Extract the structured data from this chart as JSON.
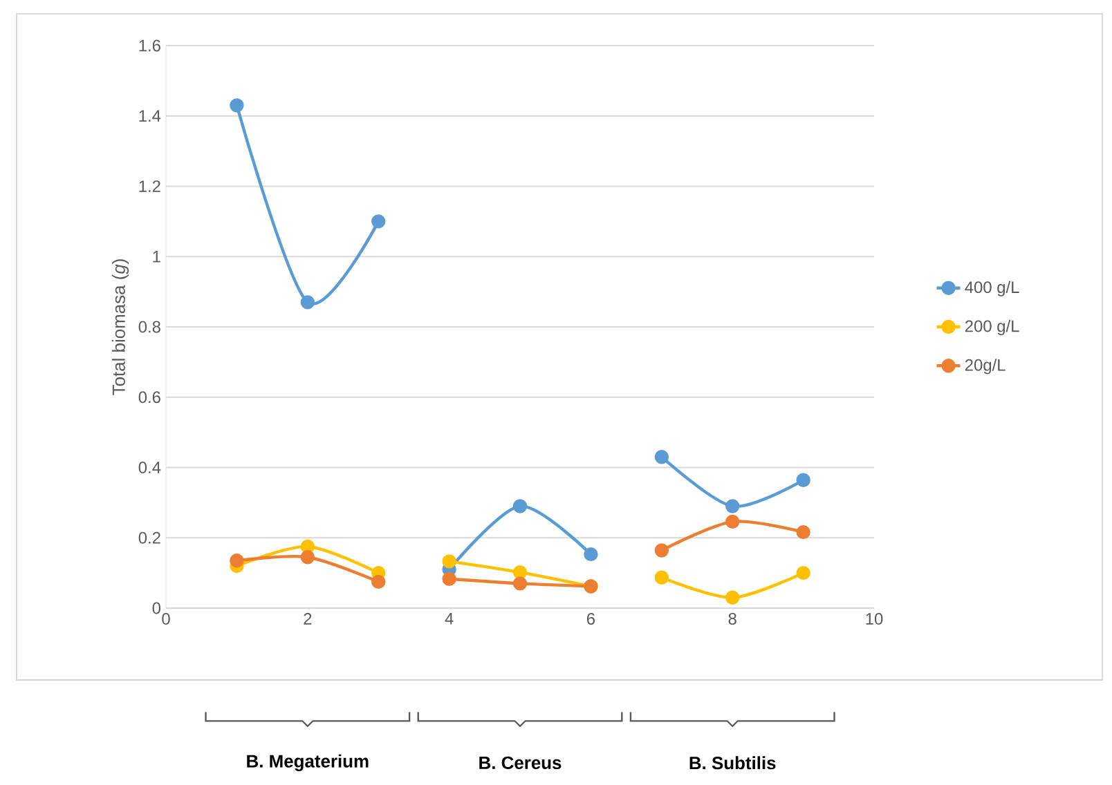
{
  "chart_data": {
    "type": "line",
    "ylabel": "Total biomasa (*g*)",
    "x": [
      1,
      2,
      3,
      null,
      4,
      5,
      6,
      null,
      7,
      8,
      9
    ],
    "series": [
      {
        "name": "400 g/L",
        "color": "#5b9bd5",
        "values": [
          1.43,
          0.87,
          1.1,
          null,
          0.11,
          0.29,
          0.153,
          null,
          0.43,
          0.29,
          0.364
        ]
      },
      {
        "name": "200 g/L",
        "color": "#ffc000",
        "values": [
          0.12,
          0.175,
          0.1,
          null,
          0.133,
          0.102,
          0.062,
          null,
          0.087,
          0.03,
          0.1
        ]
      },
      {
        "name": "20g/L",
        "color": "#ed7d31",
        "values": [
          0.135,
          0.145,
          0.075,
          null,
          0.083,
          0.07,
          0.062,
          null,
          0.164,
          0.246,
          0.216
        ]
      }
    ],
    "xlim": [
      0,
      10
    ],
    "xticks": [
      0,
      2,
      4,
      6,
      8,
      10
    ],
    "ylim": [
      0,
      1.6
    ],
    "yticks": [
      0,
      0.2,
      0.4,
      0.6,
      0.8,
      1,
      1.2,
      1.4,
      1.6
    ],
    "grid": "y",
    "legend": "right",
    "marker": "circle",
    "line_style": "solid",
    "annotations": [
      "B. Megaterium",
      "B. Cereus",
      "B. Subtilis"
    ]
  }
}
